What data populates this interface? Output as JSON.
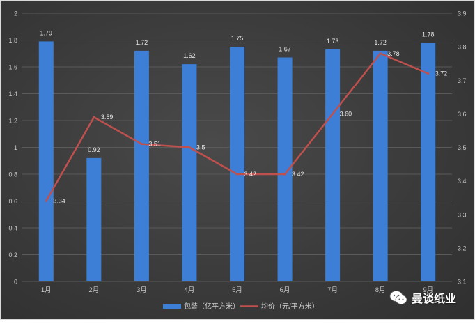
{
  "chart_data": {
    "type": "bar",
    "categories": [
      "1月",
      "2月",
      "3月",
      "4月",
      "5月",
      "6月",
      "7月",
      "8月",
      "9月"
    ],
    "series": [
      {
        "name": "包装（亿平方米）",
        "type": "bar",
        "axis": "left",
        "values": [
          1.79,
          0.92,
          1.72,
          1.62,
          1.75,
          1.67,
          1.73,
          1.72,
          1.78
        ],
        "labels": [
          "1.79",
          "0.92",
          "1.72",
          "1.62",
          "1.75",
          "1.67",
          "1.73",
          "1.72",
          "1.78"
        ],
        "color": "#3d7fd6"
      },
      {
        "name": "均价（元/平方米）",
        "type": "line",
        "axis": "right",
        "values": [
          3.34,
          3.59,
          3.51,
          3.5,
          3.42,
          3.42,
          3.6,
          3.78,
          3.72
        ],
        "labels": [
          "3.34",
          "3.59",
          "3.51",
          "3.5",
          "3.42",
          "3.42",
          "3.60",
          "3.78",
          "3.72"
        ],
        "color": "#c0504d"
      }
    ],
    "y_left": {
      "range": [
        0,
        2
      ],
      "ticks": [
        "0",
        "0.2",
        "0.4",
        "0.6",
        "0.8",
        "1",
        "1.2",
        "1.4",
        "1.6",
        "1.8",
        "2"
      ]
    },
    "y_right": {
      "range": [
        3.1,
        3.9
      ],
      "ticks": [
        "3.1",
        "3.2",
        "3.3",
        "3.4",
        "3.5",
        "3.6",
        "3.7",
        "3.8",
        "3.9"
      ]
    },
    "grid": true,
    "legend_position": "bottom"
  },
  "watermark": {
    "text": "曼谈纸业",
    "icon": "wechat-icon"
  }
}
